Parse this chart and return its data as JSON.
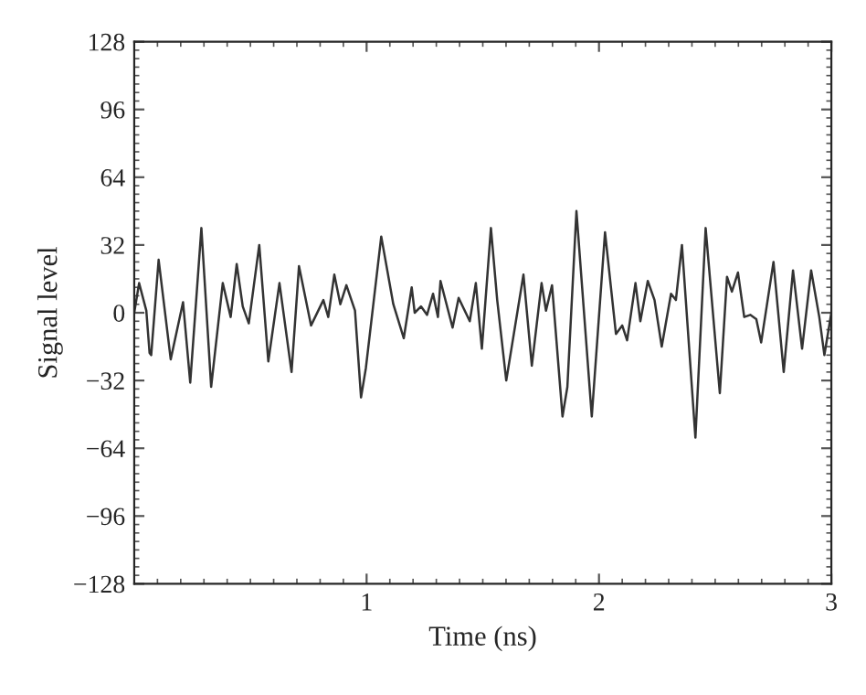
{
  "chart_data": {
    "type": "line",
    "xlabel": "Time (ns)",
    "ylabel": "Signal level",
    "x": [
      0,
      0.021,
      0.052,
      0.066,
      0.073,
      0.105,
      0.157,
      0.21,
      0.241,
      0.289,
      0.331,
      0.381,
      0.415,
      0.441,
      0.467,
      0.493,
      0.538,
      0.577,
      0.625,
      0.677,
      0.709,
      0.761,
      0.814,
      0.835,
      0.861,
      0.887,
      0.913,
      0.95,
      0.976,
      0.997,
      1.063,
      1.115,
      1.16,
      1.194,
      1.207,
      1.234,
      1.26,
      1.286,
      1.307,
      1.318,
      1.37,
      1.396,
      1.444,
      1.47,
      1.496,
      1.535,
      1.562,
      1.601,
      1.675,
      1.711,
      1.753,
      1.772,
      1.798,
      1.843,
      1.864,
      1.903,
      1.969,
      2.026,
      2.073,
      2.1,
      2.121,
      2.157,
      2.178,
      2.21,
      2.239,
      2.27,
      2.31,
      2.331,
      2.357,
      2.415,
      2.459,
      2.52,
      2.551,
      2.572,
      2.598,
      2.625,
      2.651,
      2.677,
      2.698,
      2.751,
      2.795,
      2.835,
      2.874,
      2.913,
      2.948,
      2.97,
      3.0
    ],
    "series": [
      {
        "color": "#333333",
        "values": [
          0,
          14,
          1,
          -19,
          -20,
          25,
          -22,
          5,
          -33,
          40,
          -35,
          14,
          -2,
          23,
          3,
          -5,
          32,
          -23,
          14,
          -28,
          22,
          -6,
          6,
          -2,
          18,
          4,
          13,
          1,
          -40,
          -26,
          36,
          4,
          -12,
          12,
          0,
          3,
          -1,
          9,
          -2,
          15,
          -7,
          7,
          -4,
          14,
          -17,
          40,
          6,
          -32,
          18,
          -25,
          14,
          1,
          13,
          -49,
          -35,
          48,
          -49,
          38,
          -10,
          -6,
          -13,
          14,
          -4,
          15,
          6,
          -16,
          9,
          6,
          32,
          -59,
          40,
          -38,
          17,
          10,
          19,
          -2,
          -1,
          -3,
          -14,
          24,
          -28,
          20,
          -17,
          20,
          -2,
          -20,
          0
        ]
      }
    ],
    "xlim": [
      0,
      3
    ],
    "xticks": [
      1,
      2,
      3
    ],
    "ylim": [
      -128,
      128
    ],
    "yticks": [
      {
        "value": -128,
        "label": "−128"
      },
      {
        "value": -96,
        "label": "−96"
      },
      {
        "value": -64,
        "label": "−64"
      },
      {
        "value": -32,
        "label": "−32"
      },
      0,
      32,
      64,
      96,
      128
    ],
    "grid": false,
    "legend": false,
    "marker": "none",
    "line_style": "solid"
  }
}
